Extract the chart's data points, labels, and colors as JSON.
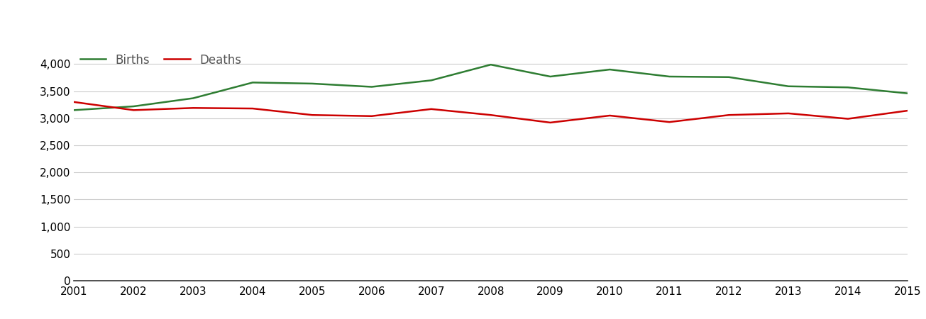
{
  "years": [
    2001,
    2002,
    2003,
    2004,
    2005,
    2006,
    2007,
    2008,
    2009,
    2010,
    2011,
    2012,
    2013,
    2014,
    2015
  ],
  "births": [
    3150,
    3220,
    3370,
    3660,
    3640,
    3580,
    3700,
    3990,
    3770,
    3900,
    3770,
    3760,
    3590,
    3570,
    3460
  ],
  "deaths": [
    3300,
    3150,
    3190,
    3180,
    3060,
    3040,
    3170,
    3060,
    2920,
    3050,
    2930,
    3060,
    3090,
    2990,
    3140
  ],
  "births_color": "#2e7d32",
  "deaths_color": "#cc0000",
  "background_color": "#ffffff",
  "grid_color": "#cccccc",
  "ylim": [
    0,
    4300
  ],
  "yticks": [
    0,
    500,
    1000,
    1500,
    2000,
    2500,
    3000,
    3500,
    4000
  ],
  "legend_births": "Births",
  "legend_deaths": "Deaths",
  "line_width": 1.8,
  "tick_fontsize": 11,
  "legend_fontsize": 12
}
